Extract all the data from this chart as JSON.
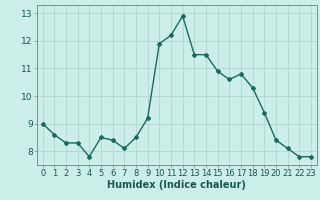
{
  "x": [
    0,
    1,
    2,
    3,
    4,
    5,
    6,
    7,
    8,
    9,
    10,
    11,
    12,
    13,
    14,
    15,
    16,
    17,
    18,
    19,
    20,
    21,
    22,
    23
  ],
  "y": [
    9.0,
    8.6,
    8.3,
    8.3,
    7.8,
    8.5,
    8.4,
    8.1,
    8.5,
    9.2,
    11.9,
    12.2,
    12.9,
    11.5,
    11.5,
    10.9,
    10.6,
    10.8,
    10.3,
    9.4,
    8.4,
    8.1,
    7.8,
    7.8
  ],
  "line_color": "#1a6b5a",
  "marker": "D",
  "marker_size": 2,
  "bg_color": "#cceee8",
  "grid_color": "#b8d8d4",
  "xlabel": "Humidex (Indice chaleur)",
  "ylim": [
    7.5,
    13.3
  ],
  "xlim": [
    -0.5,
    23.5
  ],
  "yticks": [
    8,
    9,
    10,
    11,
    12,
    13
  ],
  "xticks": [
    0,
    1,
    2,
    3,
    4,
    5,
    6,
    7,
    8,
    9,
    10,
    11,
    12,
    13,
    14,
    15,
    16,
    17,
    18,
    19,
    20,
    21,
    22,
    23
  ],
  "tick_fontsize": 6,
  "xlabel_fontsize": 7,
  "ytick_fontsize": 6.5
}
